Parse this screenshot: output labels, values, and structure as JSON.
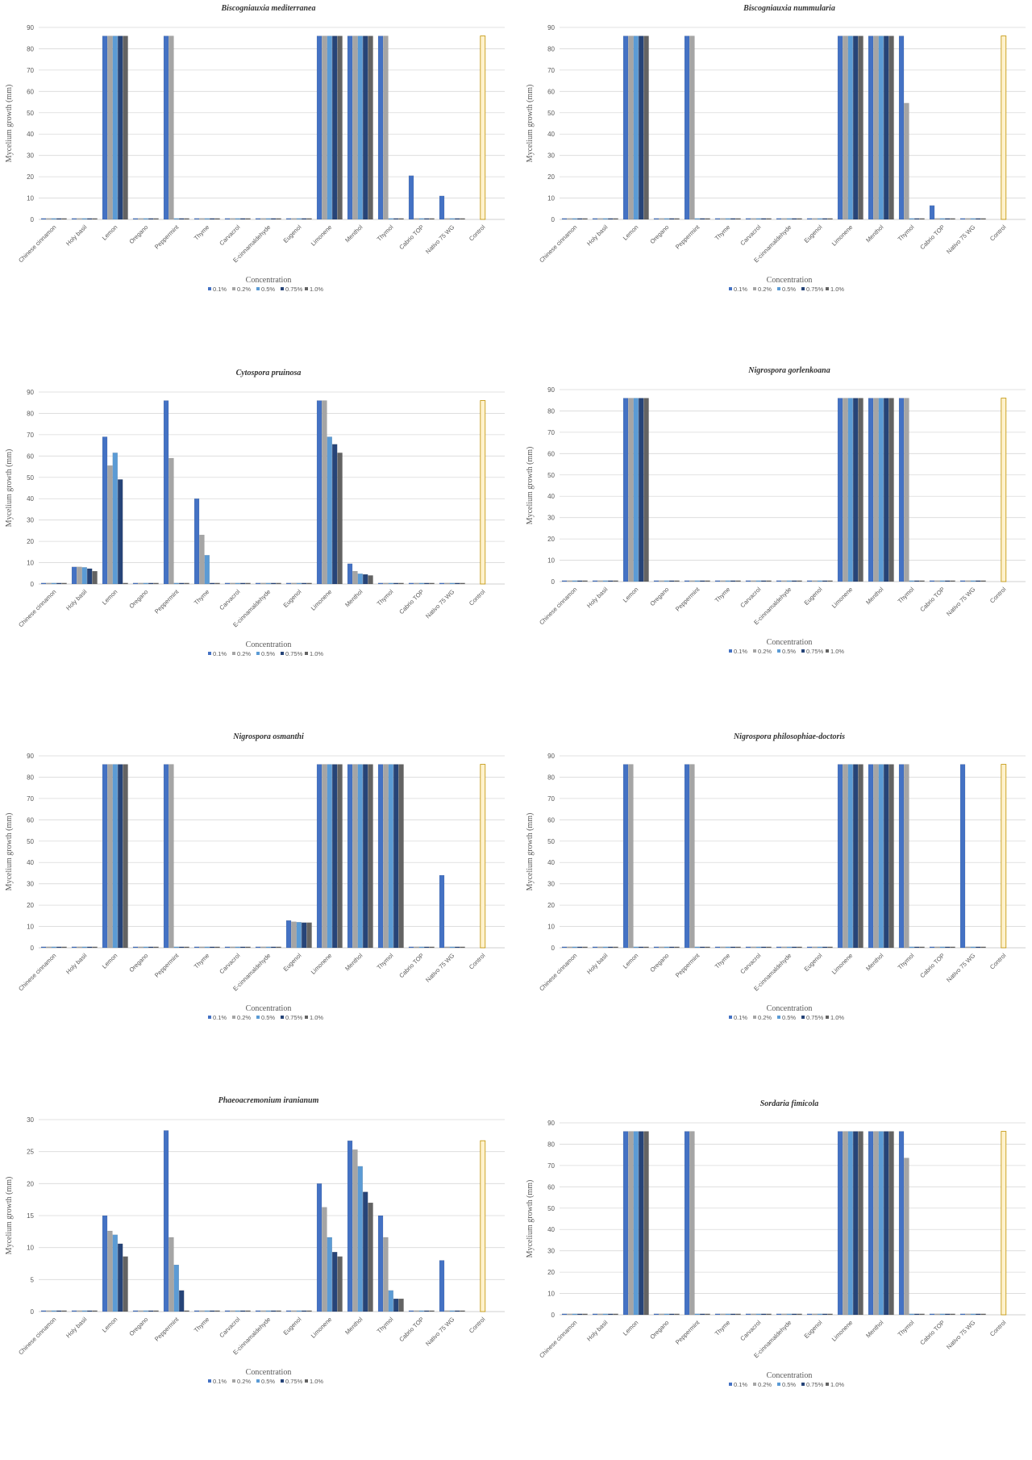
{
  "chart_data": [
    {
      "type": "bar",
      "title": "Biscogniauxia mediterranea",
      "ylabel": "Mycelium growth (mm)",
      "xlabel": "",
      "ylim": [
        0,
        90
      ],
      "yticks": [
        0,
        10,
        20,
        30,
        40,
        50,
        60,
        70,
        80,
        90
      ],
      "legend_title": "Concentration",
      "legend_position": "bottom",
      "categories": [
        "Chinese cinnamon",
        "Holy basil",
        "Lemon",
        "Oregano",
        "Peppermint",
        "Thyme",
        "Carvacrol",
        "E-cinnamaldehyde",
        "Eugenol",
        "Limonene",
        "Menthol",
        "Thymol",
        "Cabrio TOP",
        "Nativo 75 WG",
        "Control"
      ],
      "series": [
        {
          "name": "0.1%",
          "values": [
            0,
            0,
            86,
            0,
            86,
            0,
            0,
            0,
            0,
            86,
            86,
            86,
            20.5,
            11,
            86
          ]
        },
        {
          "name": "0.2%",
          "values": [
            0,
            0,
            86,
            0,
            86,
            0,
            0,
            0,
            0,
            86,
            86,
            86,
            0,
            0,
            0
          ]
        },
        {
          "name": "0.5%",
          "values": [
            0,
            0,
            86,
            0,
            0,
            0,
            0,
            0,
            0,
            86,
            86,
            0,
            0,
            0,
            0
          ]
        },
        {
          "name": "0.75%",
          "values": [
            0,
            0,
            86,
            0,
            0,
            0,
            0,
            0,
            0,
            86,
            86,
            0,
            0,
            0,
            0
          ]
        },
        {
          "name": "1.0%",
          "values": [
            0,
            0,
            86,
            0,
            0,
            0,
            0,
            0,
            0,
            86,
            86,
            0,
            0,
            0,
            0
          ]
        }
      ]
    },
    {
      "type": "bar",
      "title": "Biscogniauxia nummularia",
      "ylabel": "Mycelium growth (mm)",
      "xlabel": "",
      "ylim": [
        0,
        90
      ],
      "yticks": [
        0,
        10,
        20,
        30,
        40,
        50,
        60,
        70,
        80,
        90
      ],
      "legend_title": "Concentration",
      "legend_position": "bottom",
      "categories": [
        "Chinese cinnamon",
        "Holy basil",
        "Lemon",
        "Oregano",
        "Peppermint",
        "Thyme",
        "Carvacrol",
        "E-cinnamaldehyde",
        "Eugenol",
        "Limonene",
        "Menthol",
        "Thymol",
        "Cabrio TOP",
        "Nativo 75 WG",
        "Control"
      ],
      "series": [
        {
          "name": "0.1%",
          "values": [
            0,
            0,
            86,
            0,
            86,
            0,
            0,
            0,
            0,
            86,
            86,
            86,
            6.5,
            0,
            86
          ]
        },
        {
          "name": "0.2%",
          "values": [
            0,
            0,
            86,
            0,
            86,
            0,
            0,
            0,
            0,
            86,
            86,
            54.5,
            0,
            0,
            0
          ]
        },
        {
          "name": "0.5%",
          "values": [
            0,
            0,
            86,
            0,
            0,
            0,
            0,
            0,
            0,
            86,
            86,
            0,
            0,
            0,
            0
          ]
        },
        {
          "name": "0.75%",
          "values": [
            0,
            0,
            86,
            0,
            0,
            0,
            0,
            0,
            0,
            86,
            86,
            0,
            0,
            0,
            0
          ]
        },
        {
          "name": "1.0%",
          "values": [
            0,
            0,
            86,
            0,
            0,
            0,
            0,
            0,
            0,
            86,
            86,
            0,
            0,
            0,
            0
          ]
        }
      ]
    },
    {
      "type": "bar",
      "title": "Cytospora pruinosa",
      "ylabel": "Mycelium growth (mm)",
      "xlabel": "",
      "ylim": [
        0,
        90
      ],
      "yticks": [
        0,
        10,
        20,
        30,
        40,
        50,
        60,
        70,
        80,
        90
      ],
      "legend_title": "Concentration",
      "legend_position": "bottom",
      "categories": [
        "Chinese cinnamon",
        "Holy basil",
        "Lemon",
        "Oregano",
        "Peppermint",
        "Thyme",
        "Carvacrol",
        "E-cinnamaldehyde",
        "Eugenol",
        "Limonene",
        "Menthol",
        "Thymol",
        "Cabrio TOP",
        "Nativo 75 WG",
        "Control"
      ],
      "series": [
        {
          "name": "0.1%",
          "values": [
            0,
            8,
            69,
            0,
            86,
            40,
            0,
            0,
            0,
            86,
            9.5,
            0,
            0,
            0,
            86
          ]
        },
        {
          "name": "0.2%",
          "values": [
            0,
            8,
            55.5,
            0,
            59,
            23,
            0,
            0,
            0,
            86,
            6,
            0,
            0,
            0,
            0
          ]
        },
        {
          "name": "0.5%",
          "values": [
            0,
            7.8,
            61.5,
            0,
            0,
            13.5,
            0,
            0,
            0,
            69,
            4.8,
            0,
            0,
            0,
            0
          ]
        },
        {
          "name": "0.75%",
          "values": [
            0,
            7.2,
            49,
            0,
            0,
            0,
            0,
            0,
            0,
            65.5,
            4.5,
            0,
            0,
            0,
            0
          ]
        },
        {
          "name": "1.0%",
          "values": [
            0,
            6,
            0,
            0,
            0,
            0,
            0,
            0,
            0,
            61.5,
            4,
            0,
            0,
            0,
            0
          ]
        }
      ]
    },
    {
      "type": "bar",
      "title": "Nigrospora gorlenkoana",
      "ylabel": "Mycelium growth (mm)",
      "xlabel": "",
      "ylim": [
        0,
        90
      ],
      "yticks": [
        0,
        10,
        20,
        30,
        40,
        50,
        60,
        70,
        80,
        90
      ],
      "legend_title": "Concentration",
      "legend_position": "bottom",
      "categories": [
        "Chinese cinnamon",
        "Holy basil",
        "Lemon",
        "Oregano",
        "Peppermint",
        "Thyme",
        "Carvacrol",
        "E-cinnamaldehyde",
        "Eugenol",
        "Limonene",
        "Menthol",
        "Thymol",
        "Cabrio TOP",
        "Nativo 75 WG",
        "Control"
      ],
      "series": [
        {
          "name": "0.1%",
          "values": [
            0,
            0,
            86,
            0,
            0,
            0,
            0,
            0,
            0,
            86,
            86,
            86,
            0,
            0,
            86
          ]
        },
        {
          "name": "0.2%",
          "values": [
            0,
            0,
            86,
            0,
            0,
            0,
            0,
            0,
            0,
            86,
            86,
            86,
            0,
            0,
            0
          ]
        },
        {
          "name": "0.5%",
          "values": [
            0,
            0,
            86,
            0,
            0,
            0,
            0,
            0,
            0,
            86,
            86,
            0,
            0,
            0,
            0
          ]
        },
        {
          "name": "0.75%",
          "values": [
            0,
            0,
            86,
            0,
            0,
            0,
            0,
            0,
            0,
            86,
            86,
            0,
            0,
            0,
            0
          ]
        },
        {
          "name": "1.0%",
          "values": [
            0,
            0,
            86,
            0,
            0,
            0,
            0,
            0,
            0,
            86,
            86,
            0,
            0,
            0,
            0
          ]
        }
      ]
    },
    {
      "type": "bar",
      "title": "Nigrospora osmanthi",
      "ylabel": "Mycelium growth (mm)",
      "xlabel": "",
      "ylim": [
        0,
        90
      ],
      "yticks": [
        0,
        10,
        20,
        30,
        40,
        50,
        60,
        70,
        80,
        90
      ],
      "legend_title": "Concentration",
      "legend_position": "bottom",
      "categories": [
        "Chinese cinnamon",
        "Holy basil",
        "Lemon",
        "Oregano",
        "Peppermint",
        "Thyme",
        "Carvacrol",
        "E-cinnamaldehyde",
        "Eugenol",
        "Limonene",
        "Menthol",
        "Thymol",
        "Cabrio TOP",
        "Nativo 75 WG",
        "Control"
      ],
      "series": [
        {
          "name": "0.1%",
          "values": [
            0,
            0,
            86,
            0,
            86,
            0,
            0,
            0,
            12.8,
            86,
            86,
            86,
            0,
            34,
            86
          ]
        },
        {
          "name": "0.2%",
          "values": [
            0,
            0,
            86,
            0,
            86,
            0,
            0,
            0,
            12.2,
            86,
            86,
            86,
            0,
            0,
            0
          ]
        },
        {
          "name": "0.5%",
          "values": [
            0,
            0,
            86,
            0,
            0,
            0,
            0,
            0,
            12,
            86,
            86,
            86,
            0,
            0,
            0
          ]
        },
        {
          "name": "0.75%",
          "values": [
            0,
            0,
            86,
            0,
            0,
            0,
            0,
            0,
            11.8,
            86,
            86,
            86,
            0,
            0,
            0
          ]
        },
        {
          "name": "1.0%",
          "values": [
            0,
            0,
            86,
            0,
            0,
            0,
            0,
            0,
            11.8,
            86,
            86,
            86,
            0,
            0,
            0
          ]
        }
      ]
    },
    {
      "type": "bar",
      "title": "Nigrospora philosophiae-doctoris",
      "ylabel": "Mycelium growth (mm)",
      "xlabel": "",
      "ylim": [
        0,
        90
      ],
      "yticks": [
        0,
        10,
        20,
        30,
        40,
        50,
        60,
        70,
        80,
        90
      ],
      "legend_title": "Concentration",
      "legend_position": "bottom",
      "categories": [
        "Chinese cinnamon",
        "Holy basil",
        "Lemon",
        "Oregano",
        "Peppermint",
        "Thyme",
        "Carvacrol",
        "E-cinnamaldehyde",
        "Eugenol",
        "Limonene",
        "Menthol",
        "Thymol",
        "Cabrio TOP",
        "Nativo 75 WG",
        "Control"
      ],
      "series": [
        {
          "name": "0.1%",
          "values": [
            0,
            0,
            86,
            0,
            86,
            0,
            0,
            0,
            0,
            86,
            86,
            86,
            0,
            86,
            86
          ]
        },
        {
          "name": "0.2%",
          "values": [
            0,
            0,
            86,
            0,
            86,
            0,
            0,
            0,
            0,
            86,
            86,
            86,
            0,
            0,
            0
          ]
        },
        {
          "name": "0.5%",
          "values": [
            0,
            0,
            0,
            0,
            0,
            0,
            0,
            0,
            0,
            86,
            86,
            0,
            0,
            0,
            0
          ]
        },
        {
          "name": "0.75%",
          "values": [
            0,
            0,
            0,
            0,
            0,
            0,
            0,
            0,
            0,
            86,
            86,
            0,
            0,
            0,
            0
          ]
        },
        {
          "name": "1.0%",
          "values": [
            0,
            0,
            0,
            0,
            0,
            0,
            0,
            0,
            0,
            86,
            86,
            0,
            0,
            0,
            0
          ]
        }
      ]
    },
    {
      "type": "bar",
      "title": "Phaeoacremonium iranianum",
      "ylabel": "Mycelium growth (mm)",
      "xlabel": "",
      "ylim": [
        0,
        30
      ],
      "yticks": [
        0,
        5,
        10,
        15,
        20,
        25,
        30
      ],
      "legend_title": "Concentration",
      "legend_position": "bottom",
      "categories": [
        "Chinese cinnamon",
        "Holy basil",
        "Lemon",
        "Oregano",
        "Peppermint",
        "Thyme",
        "Carvacrol",
        "E-cinnamaldehyde",
        "Eugenol",
        "Limonene",
        "Menthol",
        "Thymol",
        "Cabrio TOP",
        "Nativo 75 WG",
        "Control"
      ],
      "series": [
        {
          "name": "0.1%",
          "values": [
            0,
            0,
            15,
            0,
            28.3,
            0,
            0,
            0,
            0,
            20,
            26.7,
            15,
            0,
            8,
            26.7
          ]
        },
        {
          "name": "0.2%",
          "values": [
            0,
            0,
            12.6,
            0,
            11.6,
            0,
            0,
            0,
            0,
            16.3,
            25.3,
            11.6,
            0,
            0,
            0
          ]
        },
        {
          "name": "0.5%",
          "values": [
            0,
            0,
            12,
            0,
            7.3,
            0,
            0,
            0,
            0,
            11.6,
            22.7,
            3.3,
            0,
            0,
            0
          ]
        },
        {
          "name": "0.75%",
          "values": [
            0,
            0,
            10.6,
            0,
            3.3,
            0,
            0,
            0,
            0,
            9.3,
            18.7,
            2,
            0,
            0,
            0
          ]
        },
        {
          "name": "1.0%",
          "values": [
            0,
            0,
            8.6,
            0,
            0,
            0,
            0,
            0,
            0,
            8.6,
            17,
            2,
            0,
            0,
            0
          ]
        }
      ]
    },
    {
      "type": "bar",
      "title": "Sordaria fimicola",
      "ylabel": "Mycelium growth (mm)",
      "xlabel": "",
      "ylim": [
        0,
        90
      ],
      "yticks": [
        0,
        10,
        20,
        30,
        40,
        50,
        60,
        70,
        80,
        90
      ],
      "legend_title": "Concentration",
      "legend_position": "bottom",
      "categories": [
        "Chinese cinnamon",
        "Holy basil",
        "Lemon",
        "Oregano",
        "Peppermint",
        "Thyme",
        "Carvacrol",
        "E-cinnamaldehyde",
        "Eugenol",
        "Limonene",
        "Menthol",
        "Thymol",
        "Cabrio TOP",
        "Nativo 75 WG",
        "Control"
      ],
      "series": [
        {
          "name": "0.1%",
          "values": [
            0,
            0,
            86,
            0,
            86,
            0,
            0,
            0,
            0,
            86,
            86,
            86,
            0,
            0,
            86
          ]
        },
        {
          "name": "0.2%",
          "values": [
            0,
            0,
            86,
            0,
            86,
            0,
            0,
            0,
            0,
            86,
            86,
            73.5,
            0,
            0,
            0
          ]
        },
        {
          "name": "0.5%",
          "values": [
            0,
            0,
            86,
            0,
            0,
            0,
            0,
            0,
            0,
            86,
            86,
            0,
            0,
            0,
            0
          ]
        },
        {
          "name": "0.75%",
          "values": [
            0,
            0,
            86,
            0,
            0,
            0,
            0,
            0,
            0,
            86,
            86,
            0,
            0,
            0,
            0
          ]
        },
        {
          "name": "1.0%",
          "values": [
            0,
            0,
            86,
            0,
            0,
            0,
            0,
            0,
            0,
            86,
            86,
            0,
            0,
            0,
            0
          ]
        }
      ]
    }
  ],
  "colors": {
    "series": [
      "#4472c4",
      "#a5a5a5",
      "#5b9bd5",
      "#264478",
      "#636363"
    ],
    "control": "#fff2cc",
    "control_edge": "#bf9000"
  }
}
